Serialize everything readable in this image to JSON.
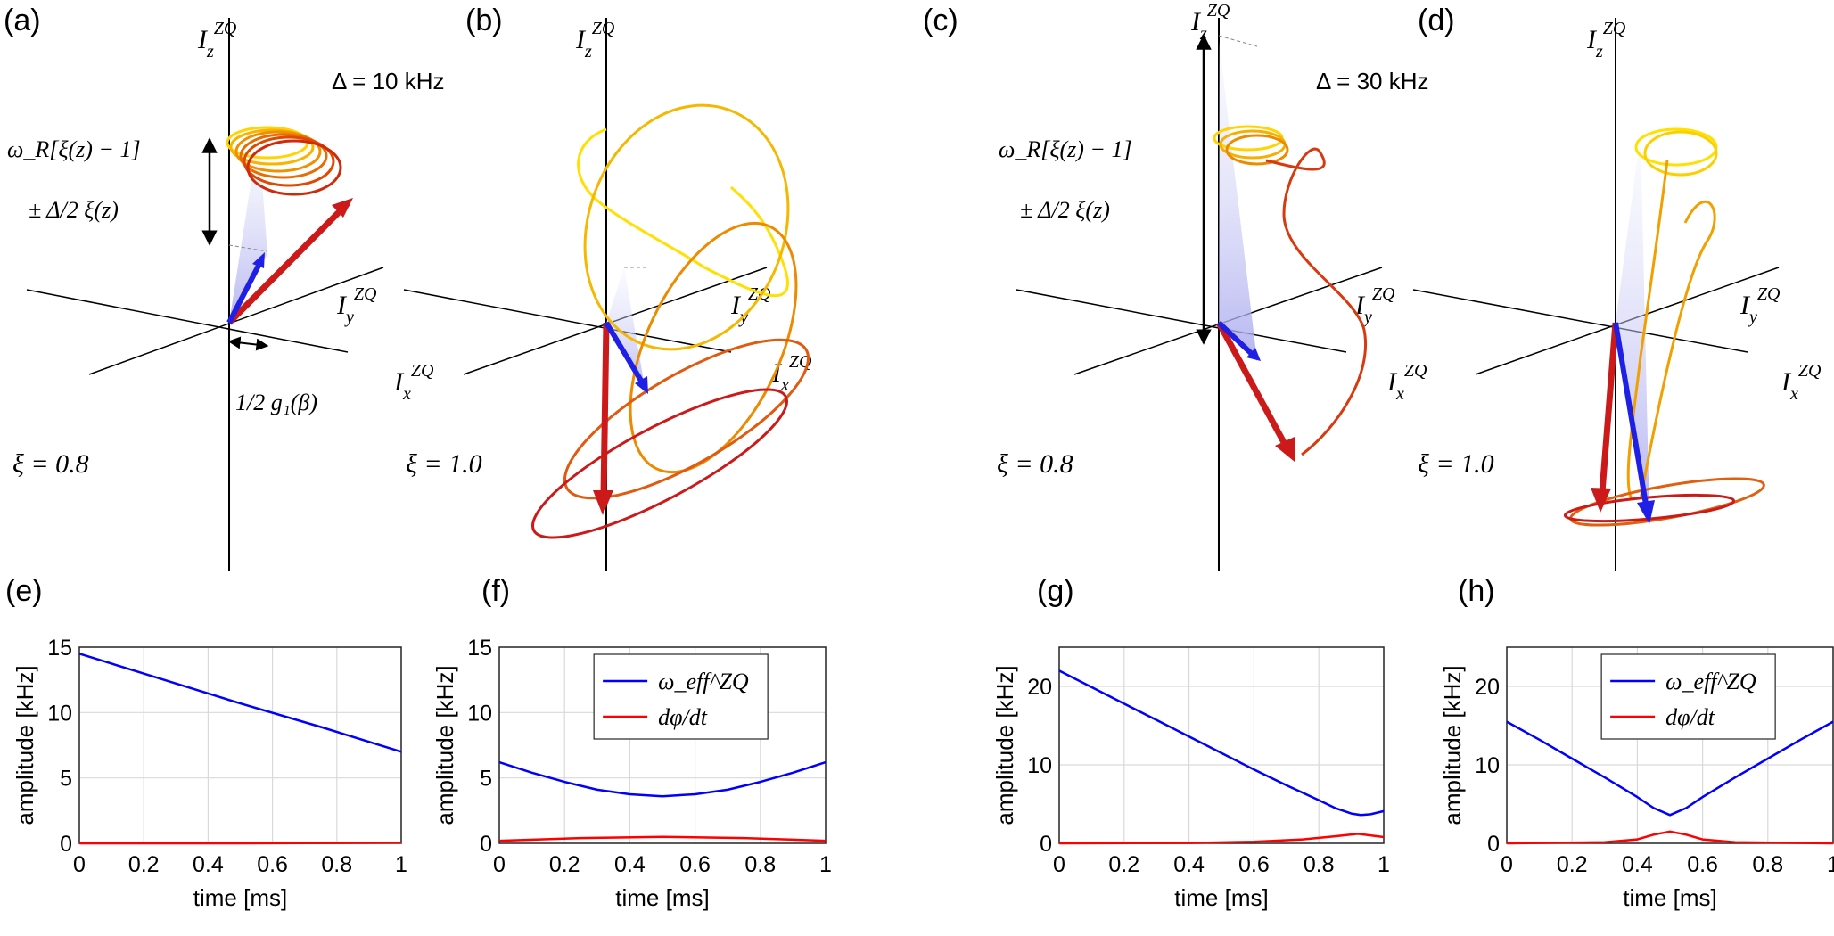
{
  "figure": {
    "panels3d": [
      {
        "label": "(a)",
        "xi_label": "ξ = 0.8",
        "delta_label": "Δ = 10 kHz",
        "annotation": {
          "line1": "ω_R[ξ(z) − 1]",
          "line2": "± Δ/2 ξ(z)",
          "offset": "1/2 g₁(β)"
        }
      },
      {
        "label": "(b)",
        "xi_label": "ξ = 1.0"
      },
      {
        "label": "(c)",
        "xi_label": "ξ = 0.8",
        "delta_label": "Δ = 30 kHz",
        "annotation": {
          "line1": "ω_R[ξ(z) − 1]",
          "line2": "± Δ/2 ξ(z)"
        }
      },
      {
        "label": "(d)",
        "xi_label": "ξ = 1.0"
      }
    ],
    "axis_symbols": {
      "z": "I_z^ZQ",
      "y": "I_y^ZQ",
      "x": "I_x^ZQ"
    },
    "colors": {
      "blue": "#1f1fe6",
      "red": "#d61a1a",
      "trajectory_start": "#ffe000",
      "trajectory_end": "#cc1010",
      "cone": "#c8c8f5"
    }
  },
  "chart_data": [
    {
      "panel": "(e)",
      "type": "line",
      "title": "",
      "xlabel": "time [ms]",
      "ylabel": "amplitude [kHz]",
      "xlim": [
        0,
        1
      ],
      "ylim": [
        0,
        15
      ],
      "xticks": [
        "0",
        "0.2",
        "0.4",
        "0.6",
        "0.8",
        "1"
      ],
      "yticks": [
        "0",
        "5",
        "10",
        "15"
      ],
      "legend": false,
      "series": [
        {
          "name": "ω_eff^ZQ",
          "color": "#0000ff",
          "x": [
            0,
            0.25,
            0.5,
            0.75,
            1
          ],
          "values": [
            14.5,
            12.6,
            10.7,
            8.9,
            7.0
          ]
        },
        {
          "name": "dφ/dt",
          "color": "#ff0000",
          "x": [
            0,
            0.5,
            1
          ],
          "values": [
            0,
            0,
            0.05
          ]
        }
      ]
    },
    {
      "panel": "(f)",
      "type": "line",
      "title": "",
      "xlabel": "time [ms]",
      "ylabel": "amplitude [kHz]",
      "xlim": [
        0,
        1
      ],
      "ylim": [
        0,
        15
      ],
      "xticks": [
        "0",
        "0.2",
        "0.4",
        "0.6",
        "0.8",
        "1"
      ],
      "yticks": [
        "0",
        "5",
        "10",
        "15"
      ],
      "legend": true,
      "series": [
        {
          "name": "ω_eff^ZQ",
          "color": "#0000ff",
          "x": [
            0,
            0.1,
            0.2,
            0.3,
            0.4,
            0.5,
            0.6,
            0.7,
            0.8,
            0.9,
            1
          ],
          "values": [
            6.2,
            5.4,
            4.7,
            4.1,
            3.75,
            3.6,
            3.75,
            4.1,
            4.7,
            5.4,
            6.2
          ]
        },
        {
          "name": "dφ/dt",
          "color": "#ff0000",
          "x": [
            0,
            0.25,
            0.5,
            0.75,
            1
          ],
          "values": [
            0.2,
            0.4,
            0.5,
            0.4,
            0.2
          ]
        }
      ]
    },
    {
      "panel": "(g)",
      "type": "line",
      "title": "",
      "xlabel": "time [ms]",
      "ylabel": "amplitude [kHz]",
      "xlim": [
        0,
        1
      ],
      "ylim": [
        0,
        25
      ],
      "xticks": [
        "0",
        "0.2",
        "0.4",
        "0.6",
        "0.8",
        "1"
      ],
      "yticks": [
        "0",
        "10",
        "20"
      ],
      "legend": false,
      "series": [
        {
          "name": "ω_eff^ZQ",
          "color": "#0000ff",
          "x": [
            0,
            0.1,
            0.2,
            0.3,
            0.4,
            0.5,
            0.6,
            0.7,
            0.8,
            0.85,
            0.9,
            0.93,
            0.96,
            1
          ],
          "values": [
            22.0,
            19.9,
            17.8,
            15.7,
            13.6,
            11.5,
            9.4,
            7.4,
            5.5,
            4.5,
            3.8,
            3.6,
            3.7,
            4.1
          ]
        },
        {
          "name": "dφ/dt",
          "color": "#ff0000",
          "x": [
            0,
            0.4,
            0.6,
            0.75,
            0.85,
            0.92,
            1
          ],
          "values": [
            0,
            0.05,
            0.2,
            0.5,
            0.9,
            1.2,
            0.8
          ]
        }
      ]
    },
    {
      "panel": "(h)",
      "type": "line",
      "title": "",
      "xlabel": "time [ms]",
      "ylabel": "amplitude [kHz]",
      "xlim": [
        0,
        1
      ],
      "ylim": [
        0,
        25
      ],
      "xticks": [
        "0",
        "0.2",
        "0.4",
        "0.6",
        "0.8",
        "1"
      ],
      "yticks": [
        "0",
        "10",
        "20"
      ],
      "legend": true,
      "series": [
        {
          "name": "ω_eff^ZQ",
          "color": "#0000ff",
          "x": [
            0,
            0.1,
            0.2,
            0.3,
            0.4,
            0.45,
            0.5,
            0.55,
            0.6,
            0.7,
            0.8,
            0.9,
            1
          ],
          "values": [
            15.5,
            13.2,
            10.8,
            8.4,
            5.9,
            4.5,
            3.6,
            4.5,
            5.9,
            8.4,
            10.8,
            13.2,
            15.5
          ]
        },
        {
          "name": "dφ/dt",
          "color": "#ff0000",
          "x": [
            0,
            0.3,
            0.4,
            0.45,
            0.5,
            0.55,
            0.6,
            0.7,
            1
          ],
          "values": [
            0,
            0.15,
            0.5,
            1.1,
            1.5,
            1.1,
            0.5,
            0.15,
            0
          ]
        }
      ]
    }
  ]
}
